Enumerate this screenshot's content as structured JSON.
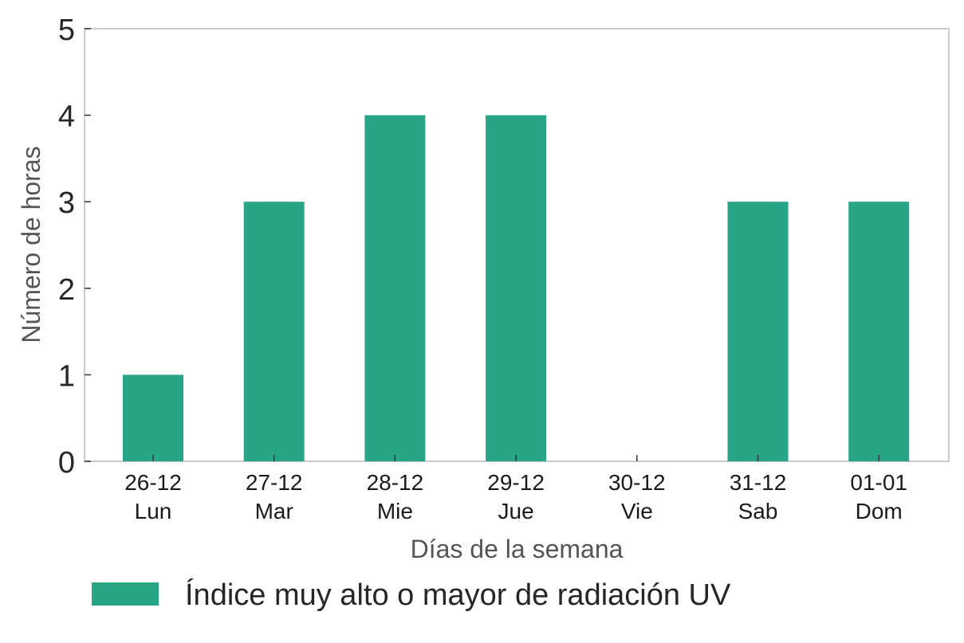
{
  "chart_data": {
    "type": "bar",
    "categories": [
      [
        "26-12",
        "Lun"
      ],
      [
        "27-12",
        "Mar"
      ],
      [
        "28-12",
        "Mie"
      ],
      [
        "29-12",
        "Jue"
      ],
      [
        "30-12",
        "Vie"
      ],
      [
        "31-12",
        "Sab"
      ],
      [
        "01-01",
        "Dom"
      ]
    ],
    "series": [
      {
        "name": "Índice muy alto o mayor de radiación UV",
        "values": [
          1,
          3,
          4,
          4,
          0,
          3,
          3
        ],
        "color": "#27a586"
      }
    ],
    "xlabel": "Días de la semana",
    "ylabel": "Número de horas",
    "ylim": [
      0,
      5
    ],
    "yticks": [
      0,
      1,
      2,
      3,
      4,
      5
    ],
    "grid": false,
    "legend_position": "bottom-left"
  }
}
